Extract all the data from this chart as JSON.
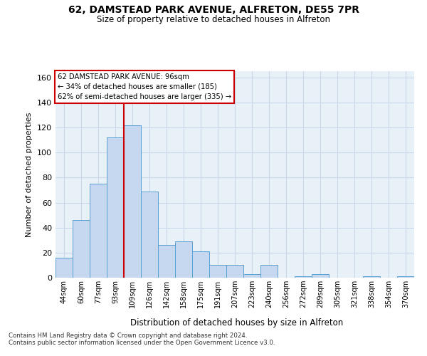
{
  "title1": "62, DAMSTEAD PARK AVENUE, ALFRETON, DE55 7PR",
  "title2": "Size of property relative to detached houses in Alfreton",
  "xlabel": "Distribution of detached houses by size in Alfreton",
  "ylabel": "Number of detached properties",
  "categories": [
    "44sqm",
    "60sqm",
    "77sqm",
    "93sqm",
    "109sqm",
    "126sqm",
    "142sqm",
    "158sqm",
    "175sqm",
    "191sqm",
    "207sqm",
    "223sqm",
    "240sqm",
    "256sqm",
    "272sqm",
    "289sqm",
    "305sqm",
    "321sqm",
    "338sqm",
    "354sqm",
    "370sqm"
  ],
  "values": [
    16,
    46,
    75,
    112,
    122,
    69,
    26,
    29,
    21,
    10,
    10,
    3,
    10,
    0,
    1,
    3,
    0,
    0,
    1,
    0,
    1
  ],
  "bar_color": "#c5d8f0",
  "bar_edge_color": "#5a9fd4",
  "grid_color": "#c8d8e8",
  "background_color": "#e8f0f8",
  "red_line_index": 3,
  "red_line_color": "#cc0000",
  "annotation_line1": "62 DAMSTEAD PARK AVENUE: 96sqm",
  "annotation_line2": "← 34% of detached houses are smaller (185)",
  "annotation_line3": "62% of semi-detached houses are larger (335) →",
  "annotation_box_color": "#ffffff",
  "annotation_box_edge": "#cc0000",
  "ylim": [
    0,
    165
  ],
  "yticks": [
    0,
    20,
    40,
    60,
    80,
    100,
    120,
    140,
    160
  ],
  "footnote1": "Contains HM Land Registry data © Crown copyright and database right 2024.",
  "footnote2": "Contains public sector information licensed under the Open Government Licence v3.0."
}
